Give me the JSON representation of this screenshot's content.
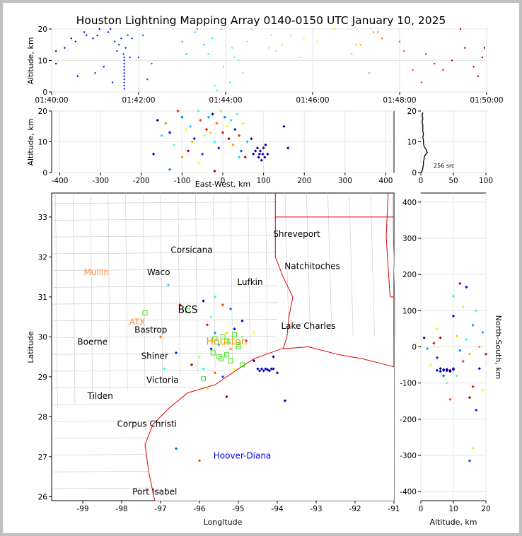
{
  "title": "Houston Lightning Mapping Array 0140-0150 UTC January 10, 2025",
  "chart_data": [
    {
      "type": "scatter",
      "name": "altitude-time",
      "ylabel": "Altitude, km",
      "xlabel": "",
      "xlim": [
        0,
        10
      ],
      "ylim": [
        0,
        20
      ],
      "x_ticks": [
        "01:40:00",
        "01:42:00",
        "01:44:00",
        "01:46:00",
        "01:48:00",
        "01:50:00"
      ],
      "y_ticks": [
        "0",
        "10",
        "20"
      ],
      "grid": true,
      "color_by": "time (blue→red)",
      "points": [
        [
          0.1,
          13
        ],
        [
          0.1,
          9
        ],
        [
          0.3,
          14
        ],
        [
          0.45,
          17
        ],
        [
          0.55,
          16
        ],
        [
          0.6,
          5
        ],
        [
          0.75,
          19
        ],
        [
          0.8,
          18
        ],
        [
          0.95,
          17
        ],
        [
          1.0,
          6
        ],
        [
          1.05,
          18
        ],
        [
          1.1,
          20
        ],
        [
          1.2,
          8
        ],
        [
          1.3,
          19
        ],
        [
          1.35,
          20
        ],
        [
          1.4,
          3
        ],
        [
          1.45,
          16
        ],
        [
          1.5,
          13
        ],
        [
          1.55,
          15
        ],
        [
          1.6,
          17
        ],
        [
          1.65,
          12
        ],
        [
          1.7,
          14
        ],
        [
          1.75,
          18
        ],
        [
          1.67,
          1
        ],
        [
          1.67,
          2
        ],
        [
          1.67,
          3
        ],
        [
          1.67,
          4
        ],
        [
          1.67,
          5
        ],
        [
          1.67,
          6
        ],
        [
          1.67,
          7
        ],
        [
          1.67,
          8
        ],
        [
          1.67,
          9
        ],
        [
          1.67,
          10
        ],
        [
          1.67,
          11
        ],
        [
          1.8,
          11
        ],
        [
          1.85,
          17
        ],
        [
          2.0,
          11
        ],
        [
          2.1,
          18
        ],
        [
          2.2,
          4
        ],
        [
          2.3,
          9
        ],
        [
          3.0,
          16
        ],
        [
          3.1,
          12
        ],
        [
          3.3,
          19
        ],
        [
          3.35,
          20
        ],
        [
          3.5,
          15
        ],
        [
          3.6,
          12
        ],
        [
          3.7,
          17
        ],
        [
          3.75,
          2
        ],
        [
          3.8,
          0.5
        ],
        [
          3.9,
          20
        ],
        [
          3.95,
          8
        ],
        [
          4.1,
          3
        ],
        [
          4.15,
          14
        ],
        [
          4.2,
          11
        ],
        [
          4.3,
          10
        ],
        [
          4.4,
          6
        ],
        [
          4.5,
          16
        ],
        [
          4.6,
          20
        ],
        [
          5.0,
          14
        ],
        [
          5.05,
          18
        ],
        [
          5.15,
          13
        ],
        [
          5.3,
          15
        ],
        [
          5.5,
          18
        ],
        [
          5.7,
          11
        ],
        [
          5.8,
          17
        ],
        [
          6.1,
          16
        ],
        [
          6.5,
          20
        ],
        [
          6.9,
          12
        ],
        [
          7.0,
          15
        ],
        [
          7.1,
          15
        ],
        [
          7.3,
          6
        ],
        [
          7.4,
          19
        ],
        [
          7.5,
          19
        ],
        [
          7.6,
          17
        ],
        [
          8.0,
          16
        ],
        [
          8.1,
          13
        ],
        [
          8.3,
          7
        ],
        [
          8.5,
          3
        ],
        [
          8.6,
          12
        ],
        [
          8.8,
          9
        ],
        [
          9.0,
          7
        ],
        [
          9.2,
          10
        ],
        [
          9.4,
          20
        ],
        [
          9.5,
          14
        ],
        [
          9.7,
          8
        ],
        [
          9.8,
          5
        ],
        [
          9.9,
          11
        ],
        [
          9.95,
          14
        ]
      ]
    },
    {
      "type": "scatter",
      "name": "altitude-east-west",
      "ylabel": "Altitude, km",
      "xlabel": "East-West, km",
      "xlim": [
        -420,
        420
      ],
      "ylim": [
        0,
        20
      ],
      "x_ticks": [
        "-400",
        "-300",
        "-200",
        "-100",
        "0",
        "100",
        "200",
        "300",
        "400"
      ],
      "y_ticks": [
        "0",
        "10",
        "20"
      ],
      "grid": true,
      "points": [
        [
          -160,
          17
        ],
        [
          -150,
          12
        ],
        [
          -140,
          16
        ],
        [
          -130,
          13
        ],
        [
          -120,
          9
        ],
        [
          -110,
          20
        ],
        [
          -100,
          18
        ],
        [
          -90,
          14
        ],
        [
          -85,
          7
        ],
        [
          -80,
          15
        ],
        [
          -75,
          10
        ],
        [
          -70,
          11
        ],
        [
          -60,
          20
        ],
        [
          -55,
          17
        ],
        [
          -50,
          6
        ],
        [
          -45,
          12
        ],
        [
          -40,
          14
        ],
        [
          -35,
          18
        ],
        [
          -30,
          13
        ],
        [
          -25,
          19
        ],
        [
          -20,
          10
        ],
        [
          -15,
          16
        ],
        [
          -10,
          8
        ],
        [
          -5,
          20
        ],
        [
          0,
          13
        ],
        [
          5,
          18
        ],
        [
          10,
          15
        ],
        [
          15,
          11
        ],
        [
          20,
          17
        ],
        [
          25,
          9
        ],
        [
          30,
          14
        ],
        [
          35,
          19
        ],
        [
          40,
          12
        ],
        [
          45,
          7
        ],
        [
          50,
          16
        ],
        [
          55,
          5
        ],
        [
          60,
          10
        ],
        [
          70,
          11
        ],
        [
          75,
          6
        ],
        [
          80,
          7
        ],
        [
          85,
          8
        ],
        [
          88,
          5
        ],
        [
          90,
          6
        ],
        [
          92,
          7
        ],
        [
          95,
          4
        ],
        [
          98,
          6
        ],
        [
          100,
          8
        ],
        [
          103,
          5
        ],
        [
          105,
          9
        ],
        [
          110,
          6
        ],
        [
          150,
          15
        ],
        [
          160,
          8
        ],
        [
          -130,
          1
        ],
        [
          -60,
          3
        ],
        [
          -20,
          0.5
        ],
        [
          40,
          5
        ],
        [
          -100,
          5
        ],
        [
          -170,
          6
        ]
      ]
    },
    {
      "type": "histogram",
      "name": "altitude-histogram",
      "xlim": [
        0,
        100
      ],
      "ylim": [
        0,
        20
      ],
      "x_ticks": [
        "0",
        "50",
        "100"
      ],
      "y_ticks": [
        "0",
        "10",
        "20"
      ],
      "annotation": "256 src",
      "bins": [
        [
          0.5,
          2
        ],
        [
          1.5,
          3
        ],
        [
          2.5,
          4
        ],
        [
          3.5,
          4
        ],
        [
          4.5,
          5
        ],
        [
          5.5,
          6
        ],
        [
          6.5,
          10
        ],
        [
          7.5,
          8
        ],
        [
          8.5,
          5
        ],
        [
          9.5,
          4
        ],
        [
          10.5,
          4
        ],
        [
          11.5,
          3
        ],
        [
          12.5,
          4
        ],
        [
          13.5,
          3
        ],
        [
          14.5,
          3
        ],
        [
          15.5,
          3
        ],
        [
          16.5,
          2
        ],
        [
          17.5,
          3
        ],
        [
          18.5,
          2
        ],
        [
          19.5,
          3
        ]
      ]
    },
    {
      "type": "map",
      "name": "plan-view",
      "xlabel": "Longitude",
      "ylabel": "Latitude",
      "xlim": [
        -99.8,
        -91.0
      ],
      "ylim": [
        25.9,
        33.6
      ],
      "x_ticks": [
        "-99",
        "-98",
        "-97",
        "-96",
        "-95",
        "-94",
        "-93",
        "-92",
        "-91"
      ],
      "y_ticks": [
        "26",
        "27",
        "28",
        "29",
        "30",
        "31",
        "32",
        "33"
      ],
      "cities": [
        {
          "name": "Shreveport",
          "lon": -93.5,
          "lat": 32.5,
          "color": "#000000"
        },
        {
          "name": "Corsicana",
          "lon": -96.2,
          "lat": 32.1,
          "color": "#000000"
        },
        {
          "name": "Natchitoches",
          "lon": -93.1,
          "lat": 31.7,
          "color": "#000000"
        },
        {
          "name": "Mullin",
          "lon": -98.65,
          "lat": 31.55,
          "color": "#ff8c3c"
        },
        {
          "name": "Waco",
          "lon": -97.05,
          "lat": 31.55,
          "color": "#000000"
        },
        {
          "name": "Lufkin",
          "lon": -94.7,
          "lat": 31.3,
          "color": "#000000"
        },
        {
          "name": "BCS",
          "lon": -96.3,
          "lat": 30.6,
          "color": "#000000"
        },
        {
          "name": "ATX",
          "lon": -97.6,
          "lat": 30.3,
          "color": "#ff8c3c"
        },
        {
          "name": "Lake Charles",
          "lon": -93.2,
          "lat": 30.2,
          "color": "#000000"
        },
        {
          "name": "Bastrop",
          "lon": -97.25,
          "lat": 30.1,
          "color": "#000000"
        },
        {
          "name": "Houston",
          "lon": -95.3,
          "lat": 29.8,
          "color": "#f0a000"
        },
        {
          "name": "Boerne",
          "lon": -98.75,
          "lat": 29.8,
          "color": "#000000"
        },
        {
          "name": "Shiner",
          "lon": -97.15,
          "lat": 29.45,
          "color": "#000000"
        },
        {
          "name": "Victoria",
          "lon": -96.95,
          "lat": 28.85,
          "color": "#000000"
        },
        {
          "name": "Tilden",
          "lon": -98.55,
          "lat": 28.45,
          "color": "#000000"
        },
        {
          "name": "Corpus Christi",
          "lon": -97.35,
          "lat": 27.75,
          "color": "#000000"
        },
        {
          "name": "Hoover-Diana",
          "lon": -94.9,
          "lat": 26.95,
          "color": "#0000ff"
        },
        {
          "name": "Port Isabel",
          "lon": -97.15,
          "lat": 26.05,
          "color": "#000000"
        }
      ],
      "stations": [
        [
          -97.4,
          30.6
        ],
        [
          -96.3,
          30.65
        ],
        [
          -95.9,
          28.95
        ],
        [
          -95.6,
          29.95
        ],
        [
          -95.4,
          30.0
        ],
        [
          -95.3,
          29.9
        ],
        [
          -95.1,
          30.05
        ],
        [
          -95.0,
          29.75
        ],
        [
          -94.9,
          29.3
        ],
        [
          -95.5,
          29.5
        ],
        [
          -95.2,
          29.4
        ],
        [
          -95.65,
          29.6
        ],
        [
          -95.45,
          29.45
        ],
        [
          -95.3,
          29.55
        ],
        [
          -95.0,
          29.8
        ]
      ],
      "points": [
        [
          -95.9,
          30.9
        ],
        [
          -95.6,
          31.0
        ],
        [
          -95.4,
          30.8
        ],
        [
          -95.2,
          30.7
        ],
        [
          -95.0,
          31.3
        ],
        [
          -94.9,
          30.4
        ],
        [
          -95.7,
          30.5
        ],
        [
          -95.8,
          30.3
        ],
        [
          -95.6,
          30.1
        ],
        [
          -95.3,
          30.1
        ],
        [
          -95.1,
          30.2
        ],
        [
          -94.9,
          30.0
        ],
        [
          -94.8,
          29.9
        ],
        [
          -95.5,
          29.8
        ],
        [
          -95.2,
          29.7
        ],
        [
          -95.7,
          29.7
        ],
        [
          -96.0,
          29.5
        ],
        [
          -96.2,
          29.3
        ],
        [
          -95.9,
          29.2
        ],
        [
          -95.6,
          29.1
        ],
        [
          -95.4,
          29.0
        ],
        [
          -95.1,
          29.2
        ],
        [
          -94.6,
          29.4
        ],
        [
          -94.5,
          29.2
        ],
        [
          -94.45,
          29.15
        ],
        [
          -94.4,
          29.2
        ],
        [
          -94.35,
          29.15
        ],
        [
          -94.3,
          29.2
        ],
        [
          -94.25,
          29.18
        ],
        [
          -94.2,
          29.15
        ],
        [
          -94.15,
          29.2
        ],
        [
          -94.1,
          29.2
        ],
        [
          -94.0,
          29.1
        ],
        [
          -93.8,
          28.4
        ],
        [
          -96.5,
          30.8
        ],
        [
          -96.8,
          31.3
        ],
        [
          -97.0,
          30.0
        ],
        [
          -96.6,
          29.6
        ],
        [
          -95.8,
          28.7
        ],
        [
          -95.3,
          28.5
        ],
        [
          -96.9,
          29.2
        ],
        [
          -96.0,
          26.9
        ],
        [
          -96.6,
          27.2
        ],
        [
          -94.6,
          30.1
        ],
        [
          -94.1,
          29.5
        ]
      ]
    },
    {
      "type": "scatter",
      "name": "north-south-altitude",
      "xlabel": "Altitude, km",
      "ylabel": "North-South, km",
      "xlim": [
        0,
        20
      ],
      "ylim": [
        -425,
        425
      ],
      "x_ticks": [
        "0",
        "10",
        "20"
      ],
      "y_ticks": [
        "-400",
        "-300",
        "-200",
        "-100",
        "0",
        "100",
        "200",
        "300",
        "400"
      ],
      "grid": true,
      "points": [
        [
          1,
          25
        ],
        [
          2,
          -5
        ],
        [
          3,
          -50
        ],
        [
          4,
          10
        ],
        [
          5,
          -30
        ],
        [
          5,
          -65
        ],
        [
          6,
          -60
        ],
        [
          6,
          -68
        ],
        [
          7,
          -63
        ],
        [
          7,
          -65
        ],
        [
          8,
          -62
        ],
        [
          8,
          -66
        ],
        [
          9,
          -65
        ],
        [
          9,
          -68
        ],
        [
          10,
          -63
        ],
        [
          10,
          -60
        ],
        [
          5,
          50
        ],
        [
          6,
          25
        ],
        [
          7,
          -80
        ],
        [
          8,
          -100
        ],
        [
          9,
          -145
        ],
        [
          10,
          85
        ],
        [
          10,
          140
        ],
        [
          11,
          30
        ],
        [
          12,
          175
        ],
        [
          12,
          -10
        ],
        [
          13,
          110
        ],
        [
          13,
          -40
        ],
        [
          14,
          165
        ],
        [
          14,
          20
        ],
        [
          15,
          -20
        ],
        [
          15,
          -140
        ],
        [
          16,
          60
        ],
        [
          16,
          -280
        ],
        [
          16,
          -110
        ],
        [
          17,
          -175
        ],
        [
          17,
          100
        ],
        [
          18,
          0
        ],
        [
          18,
          -60
        ],
        [
          19,
          40
        ],
        [
          19,
          -120
        ],
        [
          20,
          -20
        ],
        [
          15,
          -315
        ],
        [
          11,
          -80
        ]
      ]
    }
  ]
}
